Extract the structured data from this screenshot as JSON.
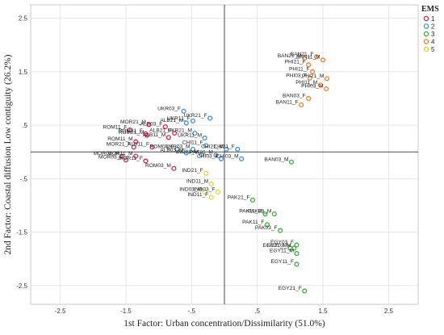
{
  "chart_data": {
    "type": "scatter",
    "xlabel": "1st Factor:  Urban concentration/Dissimilarity  (51.0%)",
    "ylabel": "2nd Factor:  Coastal diffusion Low  contiguity (26.2%)",
    "xlim": [
      -2.95,
      2.95
    ],
    "ylim": [
      -2.85,
      2.75
    ],
    "xticks": [
      -2.5,
      -1.5,
      -0.5,
      0.5,
      1.5,
      2.5
    ],
    "xtick_labels": [
      "-2.5",
      "-1.5",
      "-.5",
      ".5",
      "1.5",
      "2.5"
    ],
    "yticks": [
      2.5,
      1.5,
      0.5,
      -0.5,
      -1.5,
      -2.5
    ],
    "ytick_labels": [
      "2.5",
      "1.5",
      ".5",
      "-.5",
      "-1.5",
      "-2.5"
    ],
    "grid": true,
    "reference_lines": {
      "x": 0,
      "y": 0
    },
    "legend": {
      "title": "EMS",
      "placement": "top-right",
      "items": [
        {
          "label": "1",
          "color": "#d6204e"
        },
        {
          "label": "2",
          "color": "#3a8fd6"
        },
        {
          "label": "3",
          "color": "#3aaa3a"
        },
        {
          "label": "4",
          "color": "#f07c2e"
        },
        {
          "label": "5",
          "color": "#e8d424"
        }
      ]
    },
    "series": [
      {
        "name": "1",
        "color": "#d6204e",
        "points": [
          {
            "label": "MOR21_M",
            "x": -1.15,
            "y": 0.51
          },
          {
            "label": "ROM21_F",
            "x": -1.2,
            "y": 0.34
          },
          {
            "label": "ROM11_F",
            "x": -1.44,
            "y": 0.41
          },
          {
            "label": "ROM21_M",
            "x": -1.18,
            "y": 0.31
          },
          {
            "label": "ROM11_M",
            "x": -1.35,
            "y": 0.19
          },
          {
            "label": "ALB03_F",
            "x": -0.9,
            "y": 0.47
          },
          {
            "label": "ALB21_F",
            "x": -0.76,
            "y": 0.35
          },
          {
            "label": "ALB11_M",
            "x": -0.85,
            "y": 0.27
          },
          {
            "label": "MOR21_F",
            "x": -1.38,
            "y": 0.09
          },
          {
            "label": "ALB11_F",
            "x": -1.1,
            "y": 0.09
          },
          {
            "label": "MOR03_M",
            "x": -1.56,
            "y": -0.08
          },
          {
            "label": "MOR11_M",
            "x": -1.35,
            "y": -0.08
          },
          {
            "label": "MOR03_F",
            "x": -1.5,
            "y": -0.15
          },
          {
            "label": "MOR11_F",
            "x": -1.2,
            "y": -0.17
          },
          {
            "label": "ROM03_M",
            "x": -0.77,
            "y": -0.31
          }
        ]
      },
      {
        "name": "2",
        "color": "#3a8fd6",
        "points": [
          {
            "label": "UKR03_F",
            "x": -0.62,
            "y": 0.76
          },
          {
            "label": "UKR11_F",
            "x": -0.48,
            "y": 0.58
          },
          {
            "label": "UKR21_F",
            "x": -0.22,
            "y": 0.63
          },
          {
            "label": "ALB21_M",
            "x": -0.58,
            "y": 0.54
          },
          {
            "label": "UKR21_M",
            "x": -0.45,
            "y": 0.35
          },
          {
            "label": "UKR11_M",
            "x": -0.3,
            "y": 0.26
          },
          {
            "label": "ROM03_F",
            "x": -0.72,
            "y": 0.05
          },
          {
            "label": "UKR03_M",
            "x": -0.48,
            "y": 0.05
          },
          {
            "label": "CHI11_F",
            "x": -0.28,
            "y": 0.12
          },
          {
            "label": "CHI21_M",
            "x": 0.03,
            "y": 0.05
          },
          {
            "label": "CHI21_F",
            "x": 0.2,
            "y": 0.05
          },
          {
            "label": "IND21_M",
            "x": -0.35,
            "y": -0.05
          },
          {
            "label": "PAK21_M",
            "x": -0.13,
            "y": -0.06
          },
          {
            "label": "CHI03_F",
            "x": -0.05,
            "y": -0.13
          },
          {
            "label": "CHI03_M",
            "x": 0.26,
            "y": -0.13
          },
          {
            "label": "ALB03_M",
            "x": -0.58,
            "y": -0.02
          }
        ]
      },
      {
        "name": "3",
        "color": "#3aaa3a",
        "points": [
          {
            "label": "BAN03_M",
            "x": 1.02,
            "y": -0.19
          },
          {
            "label": "PAK21_F",
            "x": 0.43,
            "y": -0.9
          },
          {
            "label": "PAK11_M",
            "x": 0.62,
            "y": -1.16
          },
          {
            "label": "PAK03_M",
            "x": 0.76,
            "y": -1.16
          },
          {
            "label": "PAK11_F",
            "x": 0.65,
            "y": -1.36
          },
          {
            "label": "PAK03_F",
            "x": 0.85,
            "y": -1.47
          },
          {
            "label": "EGY03_F",
            "x": 1.1,
            "y": -1.74
          },
          {
            "label": "EGY03_M",
            "x": 1.06,
            "y": -1.8
          },
          {
            "label": "EGY21_M",
            "x": 1.0,
            "y": -1.8
          },
          {
            "label": "EGY11_M",
            "x": 1.1,
            "y": -1.9
          },
          {
            "label": "EGY11_F",
            "x": 1.1,
            "y": -2.1
          },
          {
            "label": "EGY21_F",
            "x": 1.22,
            "y": -2.6
          }
        ]
      },
      {
        "name": "4",
        "color": "#f07c2e",
        "points": [
          {
            "label": "BAN21_F",
            "x": 1.4,
            "y": 1.78
          },
          {
            "label": "BAN21_M",
            "x": 1.22,
            "y": 1.75
          },
          {
            "label": "BAN11_M",
            "x": 1.5,
            "y": 1.72
          },
          {
            "label": "PHI21_F",
            "x": 1.28,
            "y": 1.63
          },
          {
            "label": "PHI11_F",
            "x": 1.34,
            "y": 1.5
          },
          {
            "label": "PHI03_F",
            "x": 1.3,
            "y": 1.38
          },
          {
            "label": "PHI21_M",
            "x": 1.56,
            "y": 1.37
          },
          {
            "label": "PHI11_M",
            "x": 1.46,
            "y": 1.25
          },
          {
            "label": "PHI03_M",
            "x": 1.55,
            "y": 1.18
          },
          {
            "label": "BAN03_F",
            "x": 1.28,
            "y": 1.0
          },
          {
            "label": "BAN11_F",
            "x": 1.17,
            "y": 0.88
          }
        ]
      },
      {
        "name": "5",
        "color": "#e8d424",
        "points": [
          {
            "label": "IND21_F",
            "x": -0.28,
            "y": -0.4
          },
          {
            "label": "IND11_M",
            "x": -0.2,
            "y": -0.6
          },
          {
            "label": "IND03_F",
            "x": -0.1,
            "y": -0.75
          },
          {
            "label": "IND03_M",
            "x": -0.3,
            "y": -0.75
          },
          {
            "label": "IND11_F",
            "x": -0.2,
            "y": -0.85
          }
        ]
      }
    ]
  }
}
